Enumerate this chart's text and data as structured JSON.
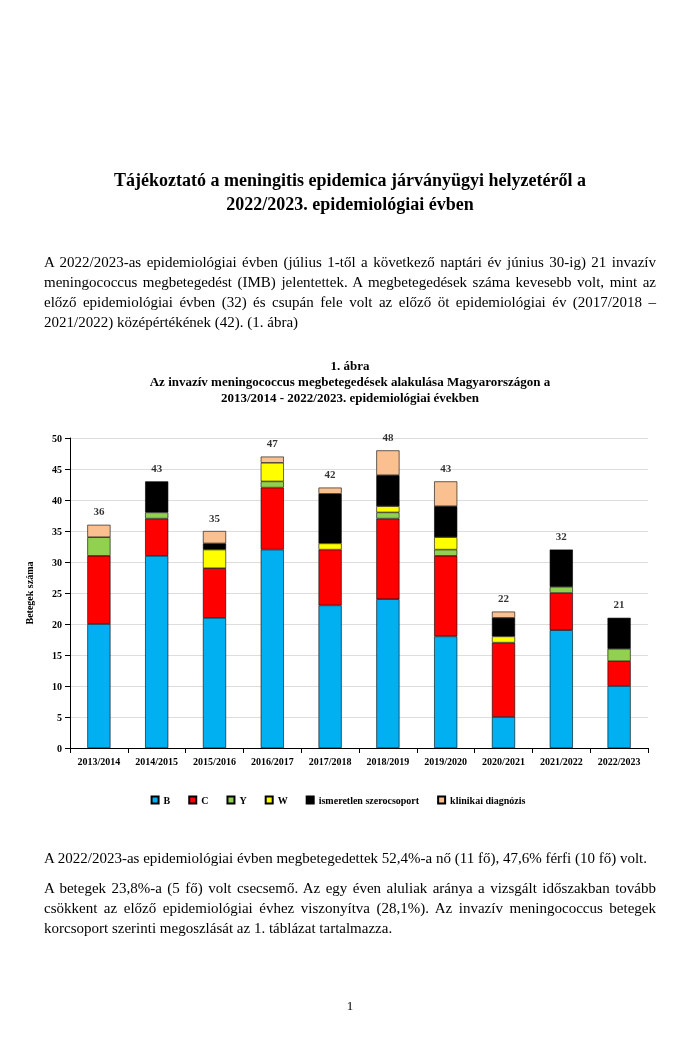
{
  "chart_data": {
    "type": "bar",
    "title": "1. ábra",
    "subtitle": "Az invazív meningococcus megbetegedések alakulása Magyarországon a 2013/2014 - 2022/2023. epidemiológiai években",
    "annotations": [
      "Tájékoztató a meningitis epidemica járványügyi helyzetéről a 2022/2023. epidemiológiai évben",
      "A 2022/2023-as epidemiológiai évben (július 1-től a következő naptári év június 30-ig) 21 invazív meningococcus megbetegedést (IMB) jelentettek. A megbetegedések száma kevesebb volt, mint az előző epidemiológiai évben (32) és csupán fele volt az előző öt epidemiológiai év (2017/2018 – 2021/2022) középértékének (42). (1. ábra)",
      "A 2022/2023-as epidemiológiai évben megbetegedettek 52,4%-a nő (11 fő), 47,6% férfi (10 fő) volt.",
      "A betegek 23,8%-a (5 fő) volt csecsemő. Az egy éven aluliak aránya a vizsgált időszakban tovább csökkent az előző epidemiológiai évhez viszonyítva (28,1%). Az invazív meningococcus betegek korcsoport szerinti megoszlását az 1. táblázat tartalmazza.",
      "1"
    ],
    "ylabel": "Betegek száma",
    "categories": [
      "2013/2014",
      "2014/2015",
      "2015/2016",
      "2016/2017",
      "2017/2018",
      "2018/2019",
      "2019/2020",
      "2020/2021",
      "2021/2022",
      "2022/2023"
    ],
    "stacked": true,
    "ylim": [
      0,
      50
    ],
    "yticks": [
      0,
      5,
      10,
      15,
      20,
      25,
      30,
      35,
      40,
      45,
      50
    ],
    "grid": "y",
    "legend": "bottom",
    "series": [
      {
        "name": "B",
        "color": "#00b0f0",
        "values": [
          20,
          31,
          21,
          32,
          23,
          24,
          18,
          5,
          19,
          10
        ]
      },
      {
        "name": "C",
        "color": "#ff0000",
        "values": [
          11,
          6,
          8,
          10,
          9,
          13,
          13,
          12,
          6,
          4
        ]
      },
      {
        "name": "Y",
        "color": "#92d050",
        "values": [
          3,
          1,
          0,
          1,
          0,
          1,
          1,
          0,
          1,
          2
        ]
      },
      {
        "name": "W",
        "color": "#ffff00",
        "values": [
          0,
          0,
          3,
          3,
          1,
          1,
          2,
          1,
          0,
          0
        ]
      },
      {
        "name": "ismeretlen szerocsoport",
        "color": "#000000",
        "values": [
          0,
          5,
          1,
          0,
          8,
          5,
          5,
          3,
          6,
          5
        ]
      },
      {
        "name": "klinikai diagnózis",
        "color": "#fac090",
        "values": [
          2,
          0,
          2,
          1,
          1,
          4,
          4,
          1,
          0,
          0
        ]
      }
    ],
    "totals": [
      "36",
      "43",
      "35",
      "47",
      "42",
      "48",
      "43",
      "22",
      "32",
      "21"
    ]
  }
}
